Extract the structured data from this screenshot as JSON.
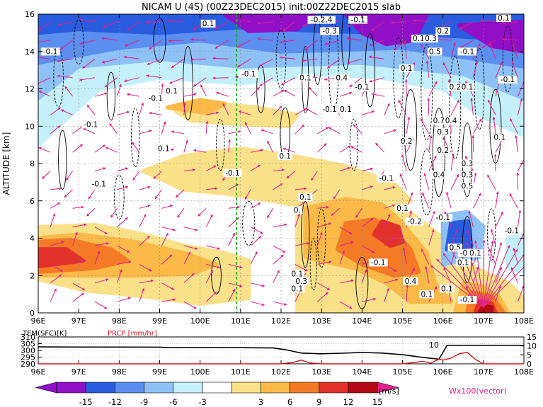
{
  "title": "NICAM  U  (4S)  (00Z23DEC2015)  init:00Z22DEC2015  slab",
  "colors": {
    "band_neg15": "#9010c8",
    "band_neg12": "#2a5ce0",
    "band_neg9": "#5a8ef0",
    "band_neg6": "#8ec2f6",
    "band_neg3": "#c4f0fa",
    "band_0": "#ffffff",
    "band_3": "#fbe08a",
    "band_6": "#fbba48",
    "band_9": "#f47a26",
    "band_12": "#e4302a",
    "band_15": "#b40a14",
    "band_max": "#e8208e",
    "vector": "#e0208a",
    "temp_line": "#000000",
    "precip_line": "#e01020",
    "reference_line": "#18b018"
  },
  "chart_data": [
    {
      "type": "heatmap",
      "name": "zonal-wind-cross-section",
      "ylabel": "ALTITUDE [km]",
      "x_ticks": [
        "96E",
        "97E",
        "98E",
        "99E",
        "100E",
        "101E",
        "102E",
        "103E",
        "104E",
        "105E",
        "106E",
        "107E",
        "108E"
      ],
      "y_ticks": [
        "0",
        "2",
        "4",
        "6",
        "8",
        "10",
        "12",
        "14",
        "16"
      ],
      "xlim": [
        96,
        108
      ],
      "ylim": [
        0,
        16
      ],
      "reference_longitude": 100.9,
      "contour_labels": [
        {
          "text": "0.1",
          "x": 100.2,
          "y": 15.4
        },
        {
          "text": "-0.1",
          "x": 96.3,
          "y": 13.9
        },
        {
          "text": "-0.2,4",
          "x": 103.0,
          "y": 15.6
        },
        {
          "text": "-0.1",
          "x": 103.9,
          "y": 15.6
        },
        {
          "text": "0.1",
          "x": 107.5,
          "y": 15.7
        },
        {
          "text": "-0.3",
          "x": 103.2,
          "y": 15.0
        },
        {
          "text": "0.2",
          "x": 106.0,
          "y": 15.0
        },
        {
          "text": "0.1",
          "x": 105.4,
          "y": 14.6
        },
        {
          "text": "0.3",
          "x": 105.7,
          "y": 14.6
        },
        {
          "text": "0.5",
          "x": 105.8,
          "y": 13.9
        },
        {
          "text": "-0.1",
          "x": 106.6,
          "y": 13.9
        },
        {
          "text": "-0.1",
          "x": 101.2,
          "y": 12.7
        },
        {
          "text": "0.1",
          "x": 102.6,
          "y": 12.5
        },
        {
          "text": "0.4",
          "x": 103.5,
          "y": 12.5
        },
        {
          "text": "0.1",
          "x": 105.1,
          "y": 13.0
        },
        {
          "text": "-0.1",
          "x": 107.6,
          "y": 12.4
        },
        {
          "text": "-0.1",
          "x": 104.0,
          "y": 12.0
        },
        {
          "text": "0.2",
          "x": 106.3,
          "y": 12.0
        },
        {
          "text": "0.1",
          "x": 106.6,
          "y": 12.0
        },
        {
          "text": "0.1",
          "x": 99.3,
          "y": 11.8
        },
        {
          "text": "-0.1",
          "x": 98.9,
          "y": 11.4
        },
        {
          "text": "-0.1",
          "x": 103.2,
          "y": 10.8
        },
        {
          "text": "0.1",
          "x": 103.6,
          "y": 10.8
        },
        {
          "text": "-0.1",
          "x": 97.3,
          "y": 10.0
        },
        {
          "text": "0.7",
          "x": 105.9,
          "y": 10.2
        },
        {
          "text": "0.4",
          "x": 106.2,
          "y": 10.2
        },
        {
          "text": "0.3",
          "x": 106.0,
          "y": 9.6
        },
        {
          "text": "0.1",
          "x": 107.4,
          "y": 9.3
        },
        {
          "text": "0.2",
          "x": 105.1,
          "y": 9.1
        },
        {
          "text": "0.1",
          "x": 99.1,
          "y": 8.7
        },
        {
          "text": "0.2",
          "x": 106.0,
          "y": 8.6
        },
        {
          "text": "0.1",
          "x": 102.1,
          "y": 8.3
        },
        {
          "text": "0.3",
          "x": 106.6,
          "y": 7.9
        },
        {
          "text": "-0.1",
          "x": 100.8,
          "y": 7.4
        },
        {
          "text": "0.4",
          "x": 105.9,
          "y": 7.3
        },
        {
          "text": "0.3",
          "x": 106.6,
          "y": 7.3
        },
        {
          "text": "-0.1",
          "x": 104.6,
          "y": 7.1
        },
        {
          "text": "0.5",
          "x": 106.6,
          "y": 6.7
        },
        {
          "text": "-0.1",
          "x": 97.5,
          "y": 6.8
        },
        {
          "text": "0.1",
          "x": 102.6,
          "y": 6.1
        },
        {
          "text": "0.1",
          "x": 105.0,
          "y": 5.5
        },
        {
          "text": "0.",
          "x": 102.4,
          "y": 5.4
        },
        {
          "text": "-0.2",
          "x": 105.3,
          "y": 4.8
        },
        {
          "text": "-0.1",
          "x": 106.0,
          "y": 5.0
        },
        {
          "text": "-0.1",
          "x": 107.7,
          "y": 4.3
        },
        {
          "text": "0.5",
          "x": 106.3,
          "y": 3.4
        },
        {
          "text": "-0.1",
          "x": 106.6,
          "y": 3.1
        },
        {
          "text": "0.1",
          "x": 106.8,
          "y": 3.1
        },
        {
          "text": "-0.1",
          "x": 104.4,
          "y": 2.6
        },
        {
          "text": "0.1",
          "x": 106.5,
          "y": 2.6
        },
        {
          "text": "0.1",
          "x": 102.4,
          "y": 2.0
        },
        {
          "text": "0.3",
          "x": 102.5,
          "y": 1.6
        },
        {
          "text": "0.4",
          "x": 105.2,
          "y": 1.6
        },
        {
          "text": "0.1",
          "x": 102.4,
          "y": 1.2
        },
        {
          "text": "0.1",
          "x": 106.1,
          "y": 1.2
        },
        {
          "text": "0.1",
          "x": 105.6,
          "y": 0.9
        },
        {
          "text": "-0.1",
          "x": 106.6,
          "y": 0.6
        }
      ]
    },
    {
      "type": "line",
      "name": "surface-time-series",
      "left_label": "TEM(SFC)[K]",
      "right_label": "PRCP [mm/hr]",
      "x_ticks": [
        "96E",
        "97E",
        "98E",
        "99E",
        "100E",
        "101E",
        "102E",
        "103E",
        "104E",
        "105E",
        "106E",
        "107E",
        "108E"
      ],
      "left_ticks": [
        "290",
        "295",
        "300",
        "305",
        "310"
      ],
      "right_ticks": [
        "0",
        "5",
        "10",
        "15"
      ],
      "left_ylim": [
        290,
        310
      ],
      "right_ylim": [
        0,
        15
      ],
      "annotation": "10",
      "series": [
        {
          "name": "TEM(SFC)[K]",
          "x": [
            96,
            97,
            98,
            99,
            99.2,
            100,
            101,
            101.8,
            102.1,
            102.5,
            103,
            103.5,
            104,
            104.5,
            105,
            105.5,
            105.9,
            106.1,
            106.6,
            107,
            108
          ],
          "values": [
            302.6,
            302.5,
            302.5,
            302.4,
            302.0,
            302.0,
            302.0,
            301.8,
            300.6,
            298.0,
            297.5,
            297.9,
            298.4,
            298.0,
            296.8,
            294.8,
            293.5,
            303.7,
            303.7,
            303.7,
            303.7
          ]
        },
        {
          "name": "PRCP [mm/hr]",
          "x": [
            96,
            101,
            102,
            102.3,
            102.5,
            102.7,
            103,
            104,
            105,
            105.3,
            105.5,
            105.7,
            105.9,
            106.0,
            106.2,
            106.4,
            106.6,
            106.8,
            107,
            108
          ],
          "values": [
            0,
            0,
            0,
            0.8,
            2.1,
            0.5,
            0,
            0,
            0,
            0.8,
            1.4,
            0.4,
            2.6,
            2.1,
            3.2,
            5.6,
            6.4,
            2.5,
            0,
            0
          ]
        }
      ]
    },
    {
      "type": "table",
      "name": "color-bar",
      "labels": [
        "-15",
        "-12",
        "-9",
        "-6",
        "-3",
        "3",
        "6",
        "9",
        "12",
        "15"
      ],
      "unit": "[m/s]",
      "vector_note": "Wx100(vector)"
    }
  ]
}
